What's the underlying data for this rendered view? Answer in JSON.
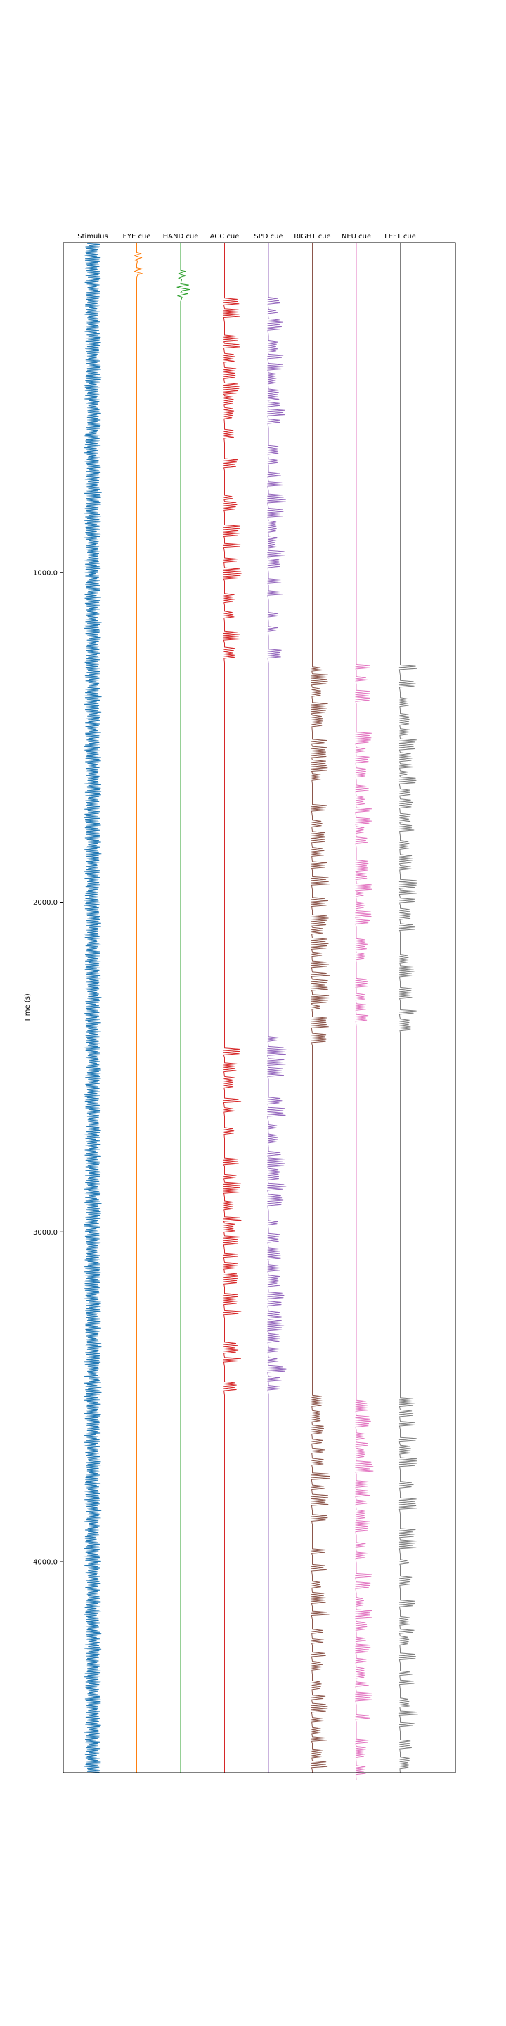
{
  "chart_data": {
    "type": "line",
    "title": "",
    "xlabel": "",
    "ylabel": "Time (s)",
    "ylim": [
      0,
      4640
    ],
    "y_inverted": true,
    "yticks": [
      1000,
      2000,
      3000,
      4000
    ],
    "ytick_labels": [
      "1000.0",
      "2000.0",
      "3000.0",
      "4000.0"
    ],
    "grid": false,
    "columns": [
      "Stimulus",
      "EYE cue",
      "HAND cue",
      "ACC cue",
      "SPD cue",
      "RIGHT cue",
      "NEU cue",
      "LEFT cue"
    ],
    "series": [
      {
        "name": "Stimulus",
        "color": "#1f77b4",
        "style": "continuous",
        "active": [
          [
            0,
            4640
          ]
        ]
      },
      {
        "name": "EYE cue",
        "color": "#ff7f0e",
        "style": "pulses",
        "active": [
          [
            0,
            80
          ]
        ]
      },
      {
        "name": "HAND cue",
        "color": "#2ca02c",
        "style": "pulses",
        "active": [
          [
            80,
            160
          ]
        ]
      },
      {
        "name": "ACC cue",
        "color": "#d62728",
        "style": "pulses",
        "active": [
          [
            160,
            1270
          ],
          [
            2400,
            3490
          ]
        ]
      },
      {
        "name": "SPD cue",
        "color": "#9467bd",
        "style": "pulses",
        "active": [
          [
            160,
            1270
          ],
          [
            2400,
            3490
          ]
        ]
      },
      {
        "name": "RIGHT cue",
        "color": "#8c564b",
        "style": "pulses",
        "active": [
          [
            1270,
            2400
          ],
          [
            3490,
            4640
          ]
        ]
      },
      {
        "name": "NEU cue",
        "color": "#e377c2",
        "style": "pulses",
        "active": [
          [
            1270,
            2400
          ],
          [
            3490,
            4640
          ]
        ]
      },
      {
        "name": "LEFT cue",
        "color": "#7f7f7f",
        "style": "pulses",
        "active": [
          [
            1270,
            2400
          ],
          [
            3490,
            4640
          ]
        ]
      }
    ]
  }
}
